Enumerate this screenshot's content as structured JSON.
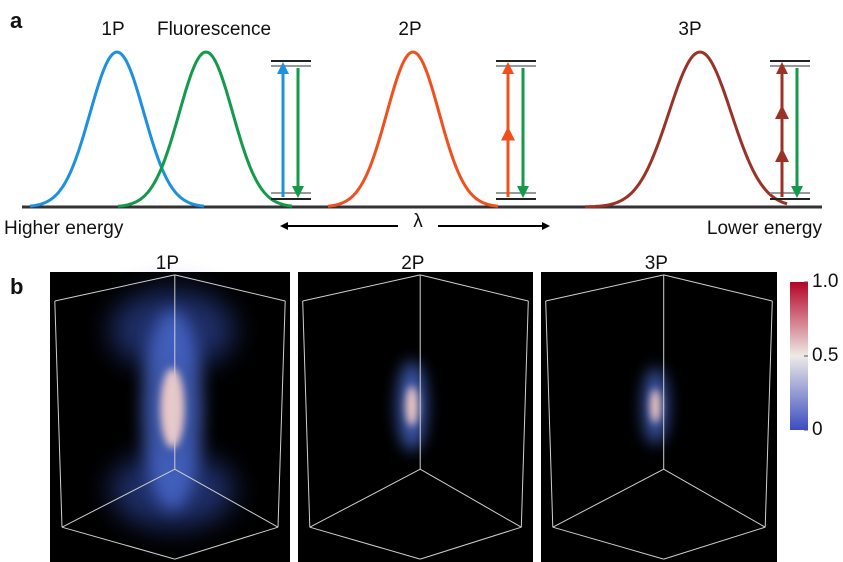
{
  "panel_a": {
    "label": "a",
    "titles": {
      "one_photon": "1P",
      "fluorescence": "Fluorescence",
      "two_photon": "2P",
      "three_photon": "3P"
    },
    "left_label": "Higher energy",
    "axis_symbol": "λ",
    "right_label": "Lower energy"
  },
  "panel_b": {
    "label": "b",
    "titles": [
      "1P",
      "2P",
      "3P"
    ],
    "colorbar": {
      "lim": [
        0,
        1
      ],
      "ticks": [
        {
          "value": 1,
          "label": "1.0"
        },
        0.5,
        0
      ]
    }
  }
}
